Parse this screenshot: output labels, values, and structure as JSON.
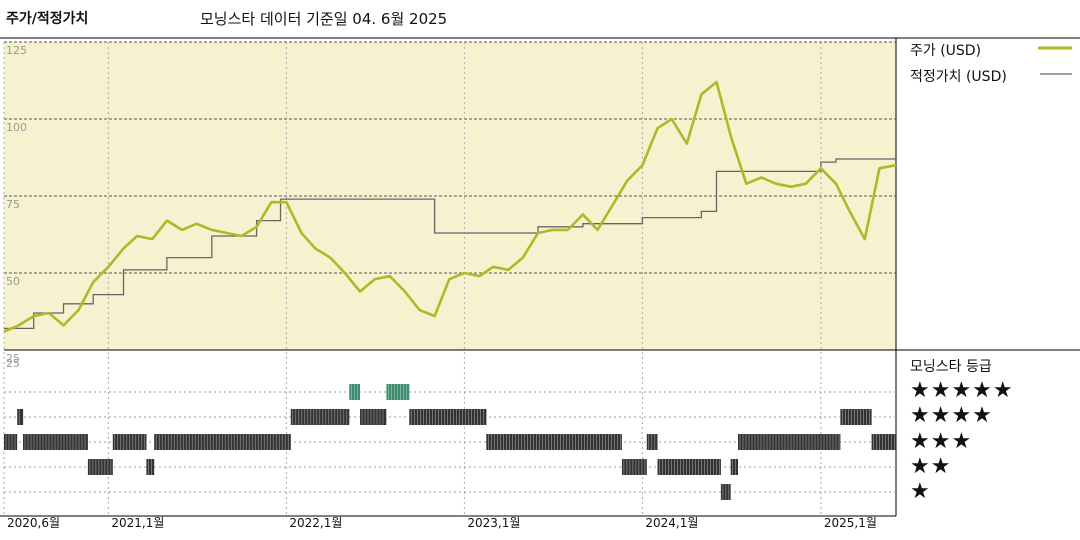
{
  "header": {
    "left_title": "주가/적정가치",
    "center_title": "모닝스타 데이터 기준일 04. 6월 2025"
  },
  "legend": {
    "price_label": "주가 (USD)",
    "fair_value_label": "적정가치 (USD)",
    "price_color": "#b0b827",
    "fair_value_color": "#666666"
  },
  "rating_panel": {
    "title": "모닝스타 등급",
    "rows": [
      "★★★★★",
      "★★★★",
      "★★★",
      "★★",
      "★"
    ],
    "color_rating_5": "#3d8a6c",
    "color_rating_other": "#333333"
  },
  "chart_data": {
    "type": "line",
    "ylim": [
      25,
      125
    ],
    "y_ticks": [
      25,
      50,
      75,
      100,
      125
    ],
    "x_tick_labels": [
      "2020,6월",
      "2021,1월",
      "2022,1월",
      "2023,1월",
      "2024,1월",
      "2025,1월"
    ],
    "x_tick_dates": [
      "2020-06-01",
      "2021-01-01",
      "2022-01-01",
      "2023-01-01",
      "2024-01-01",
      "2025-01-01"
    ],
    "x_range": [
      "2020-06-01",
      "2025-06-04"
    ],
    "background_color": "#f6f2d0",
    "series": [
      {
        "name": "주가 (USD)",
        "points": [
          [
            "2020-06-01",
            31
          ],
          [
            "2020-07-01",
            33
          ],
          [
            "2020-08-01",
            36
          ],
          [
            "2020-09-01",
            37
          ],
          [
            "2020-10-01",
            33
          ],
          [
            "2020-11-01",
            38
          ],
          [
            "2020-12-01",
            47
          ],
          [
            "2021-01-01",
            52
          ],
          [
            "2021-02-01",
            58
          ],
          [
            "2021-03-01",
            62
          ],
          [
            "2021-04-01",
            61
          ],
          [
            "2021-05-01",
            67
          ],
          [
            "2021-06-01",
            64
          ],
          [
            "2021-07-01",
            66
          ],
          [
            "2021-08-01",
            64
          ],
          [
            "2021-09-01",
            63
          ],
          [
            "2021-10-01",
            62
          ],
          [
            "2021-11-01",
            65
          ],
          [
            "2021-12-01",
            73
          ],
          [
            "2022-01-01",
            73
          ],
          [
            "2022-02-01",
            63
          ],
          [
            "2022-03-01",
            58
          ],
          [
            "2022-04-01",
            55
          ],
          [
            "2022-05-01",
            50
          ],
          [
            "2022-06-01",
            44
          ],
          [
            "2022-07-01",
            48
          ],
          [
            "2022-08-01",
            49
          ],
          [
            "2022-09-01",
            44
          ],
          [
            "2022-10-01",
            38
          ],
          [
            "2022-11-01",
            36
          ],
          [
            "2022-12-01",
            48
          ],
          [
            "2023-01-01",
            50
          ],
          [
            "2023-02-01",
            49
          ],
          [
            "2023-03-01",
            52
          ],
          [
            "2023-04-01",
            51
          ],
          [
            "2023-05-01",
            55
          ],
          [
            "2023-06-01",
            63
          ],
          [
            "2023-07-01",
            64
          ],
          [
            "2023-08-01",
            64
          ],
          [
            "2023-09-01",
            69
          ],
          [
            "2023-10-01",
            64
          ],
          [
            "2023-11-01",
            72
          ],
          [
            "2023-12-01",
            80
          ],
          [
            "2024-01-01",
            85
          ],
          [
            "2024-02-01",
            97
          ],
          [
            "2024-03-01",
            100
          ],
          [
            "2024-04-01",
            92
          ],
          [
            "2024-05-01",
            108
          ],
          [
            "2024-06-01",
            112
          ],
          [
            "2024-07-01",
            94
          ],
          [
            "2024-08-01",
            79
          ],
          [
            "2024-09-01",
            81
          ],
          [
            "2024-10-01",
            79
          ],
          [
            "2024-11-01",
            78
          ],
          [
            "2024-12-01",
            79
          ],
          [
            "2025-01-01",
            84
          ],
          [
            "2025-02-01",
            79
          ],
          [
            "2025-03-01",
            70
          ],
          [
            "2025-04-01",
            61
          ],
          [
            "2025-05-01",
            84
          ],
          [
            "2025-06-04",
            85
          ]
        ]
      },
      {
        "name": "적정가치 (USD)",
        "points": [
          [
            "2020-06-01",
            32
          ],
          [
            "2020-08-01",
            37
          ],
          [
            "2020-10-01",
            40
          ],
          [
            "2020-12-01",
            43
          ],
          [
            "2021-02-01",
            51
          ],
          [
            "2021-05-01",
            55
          ],
          [
            "2021-08-01",
            62
          ],
          [
            "2021-11-01",
            67
          ],
          [
            "2021-12-20",
            74
          ],
          [
            "2022-04-01",
            74
          ],
          [
            "2022-08-01",
            74
          ],
          [
            "2022-11-01",
            63
          ],
          [
            "2023-06-01",
            65
          ],
          [
            "2023-09-01",
            66
          ],
          [
            "2024-01-01",
            68
          ],
          [
            "2024-05-01",
            70
          ],
          [
            "2024-06-01",
            83
          ],
          [
            "2024-10-01",
            83
          ],
          [
            "2025-01-01",
            86
          ],
          [
            "2025-02-01",
            87
          ],
          [
            "2025-06-04",
            87
          ]
        ]
      }
    ],
    "rating_periods": [
      {
        "start": "2020-06-01",
        "end": "2020-06-28",
        "stars": 3
      },
      {
        "start": "2020-06-28",
        "end": "2020-07-10",
        "stars": 4
      },
      {
        "start": "2020-07-10",
        "end": "2020-11-20",
        "stars": 3
      },
      {
        "start": "2020-11-20",
        "end": "2021-01-10",
        "stars": 2
      },
      {
        "start": "2021-01-10",
        "end": "2021-03-20",
        "stars": 3
      },
      {
        "start": "2021-03-20",
        "end": "2021-04-05",
        "stars": 2
      },
      {
        "start": "2021-04-05",
        "end": "2022-01-10",
        "stars": 3
      },
      {
        "start": "2022-01-10",
        "end": "2022-05-10",
        "stars": 4
      },
      {
        "start": "2022-05-10",
        "end": "2022-06-01",
        "stars": 5
      },
      {
        "start": "2022-06-01",
        "end": "2022-07-25",
        "stars": 4
      },
      {
        "start": "2022-07-25",
        "end": "2022-09-10",
        "stars": 5
      },
      {
        "start": "2022-09-10",
        "end": "2023-02-15",
        "stars": 4
      },
      {
        "start": "2023-02-15",
        "end": "2023-11-20",
        "stars": 3
      },
      {
        "start": "2023-11-20",
        "end": "2024-01-10",
        "stars": 2
      },
      {
        "start": "2024-01-10",
        "end": "2024-02-01",
        "stars": 3
      },
      {
        "start": "2024-02-01",
        "end": "2024-06-10",
        "stars": 2
      },
      {
        "start": "2024-06-10",
        "end": "2024-06-30",
        "stars": 1
      },
      {
        "start": "2024-06-30",
        "end": "2024-07-15",
        "stars": 2
      },
      {
        "start": "2024-07-15",
        "end": "2025-02-10",
        "stars": 3
      },
      {
        "start": "2025-02-10",
        "end": "2025-04-15",
        "stars": 4
      },
      {
        "start": "2025-04-15",
        "end": "2025-06-04",
        "stars": 3
      }
    ]
  }
}
